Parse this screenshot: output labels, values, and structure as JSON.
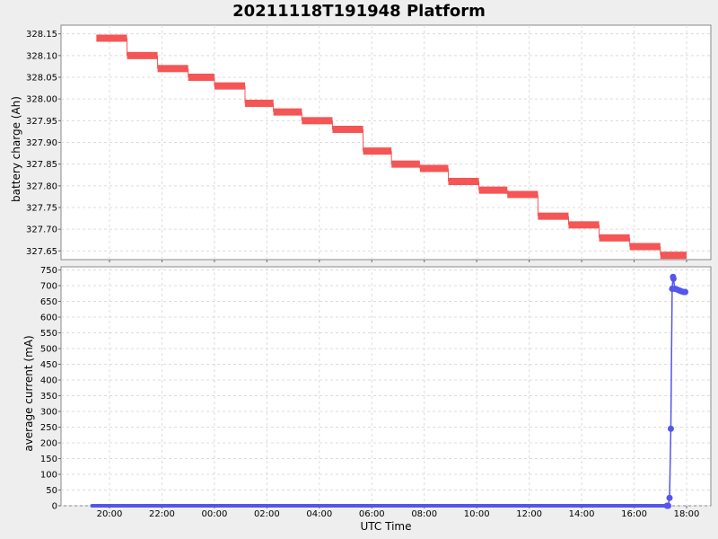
{
  "title": "20211118T191948 Platform",
  "xlabel": "UTC Time",
  "colors": {
    "battery": "#f55555",
    "current": "#5555ee"
  },
  "x_ticks": [
    "20:00",
    "22:00",
    "00:00",
    "02:00",
    "04:00",
    "06:00",
    "08:00",
    "10:00",
    "12:00",
    "14:00",
    "16:00",
    "18:00"
  ],
  "chart_data": [
    {
      "type": "line",
      "ylabel": "battery charge (Ah)",
      "ylim": [
        327.63,
        328.17
      ],
      "xlim": [
        19.25,
        18.9
      ],
      "y_ticks": [
        "327.65",
        "327.70",
        "327.75",
        "327.80",
        "327.85",
        "327.90",
        "327.95",
        "328.00",
        "328.05",
        "328.10",
        "328.15"
      ],
      "grid": true,
      "series": [
        {
          "segments": [
            {
              "x0": "19:30",
              "x1": "20:40",
              "y": 328.14
            },
            {
              "x0": "20:40",
              "x1": "21:50",
              "y": 328.1
            },
            {
              "x0": "21:50",
              "x1": "23:00",
              "y": 328.07
            },
            {
              "x0": "23:00",
              "x1": "00:00",
              "y": 328.05
            },
            {
              "x0": "00:00",
              "x1": "01:10",
              "y": 328.03
            },
            {
              "x0": "01:10",
              "x1": "02:15",
              "y": 327.99
            },
            {
              "x0": "02:15",
              "x1": "03:20",
              "y": 327.97
            },
            {
              "x0": "03:20",
              "x1": "04:30",
              "y": 327.95
            },
            {
              "x0": "04:30",
              "x1": "05:40",
              "y": 327.93
            },
            {
              "x0": "05:40",
              "x1": "06:45",
              "y": 327.88
            },
            {
              "x0": "06:45",
              "x1": "07:50",
              "y": 327.85
            },
            {
              "x0": "07:50",
              "x1": "08:55",
              "y": 327.84
            },
            {
              "x0": "08:55",
              "x1": "10:05",
              "y": 327.81
            },
            {
              "x0": "10:05",
              "x1": "11:10",
              "y": 327.79
            },
            {
              "x0": "11:10",
              "x1": "12:20",
              "y": 327.78
            },
            {
              "x0": "12:20",
              "x1": "13:30",
              "y": 327.73
            },
            {
              "x0": "13:30",
              "x1": "14:40",
              "y": 327.71
            },
            {
              "x0": "14:40",
              "x1": "15:50",
              "y": 327.68
            },
            {
              "x0": "15:50",
              "x1": "17:00",
              "y": 327.66
            },
            {
              "x0": "17:00",
              "x1": "18:00",
              "y": 327.64
            }
          ]
        }
      ]
    },
    {
      "type": "line",
      "ylabel": "average current (mA)",
      "ylim": [
        0,
        760
      ],
      "y_ticks": [
        "0",
        "50",
        "100",
        "150",
        "200",
        "250",
        "300",
        "350",
        "400",
        "450",
        "500",
        "550",
        "600",
        "650",
        "700",
        "750"
      ],
      "grid": true,
      "series": [
        {
          "flat": {
            "x0": "19:20",
            "x1": "17:15",
            "y": 0
          },
          "points": [
            {
              "x": "17:15",
              "y": 0
            },
            {
              "x": "17:18",
              "y": 0
            },
            {
              "x": "17:21",
              "y": 25
            },
            {
              "x": "17:24",
              "y": 245
            },
            {
              "x": "17:27",
              "y": 690
            },
            {
              "x": "17:29",
              "y": 728
            },
            {
              "x": "17:30",
              "y": 722
            },
            {
              "x": "17:33",
              "y": 690
            },
            {
              "x": "17:38",
              "y": 688
            },
            {
              "x": "17:43",
              "y": 685
            },
            {
              "x": "17:48",
              "y": 682
            },
            {
              "x": "17:53",
              "y": 680
            },
            {
              "x": "17:57",
              "y": 680
            }
          ]
        }
      ]
    }
  ]
}
